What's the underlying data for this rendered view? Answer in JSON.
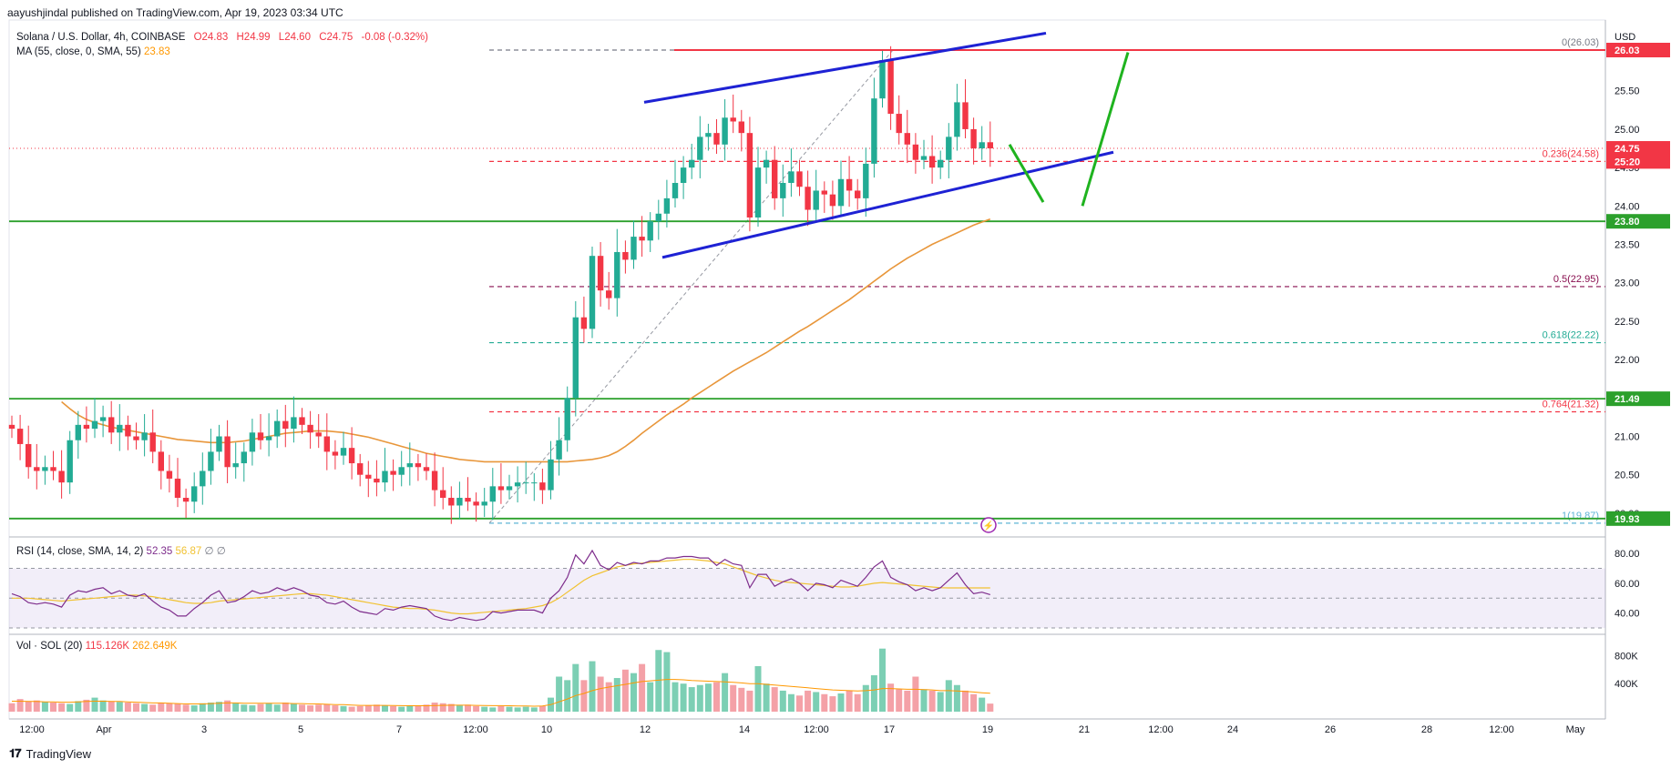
{
  "header": {
    "publisher": "aayushjindal published on TradingView.com, Apr 19, 2023 03:34 UTC",
    "symbol": "Solana / U.S. Dollar, 4h, COINBASE",
    "open": "O24.83",
    "high": "H24.99",
    "low": "L24.60",
    "close": "C24.75",
    "change": "-0.08 (-0.32%)",
    "ma_label": "MA (55, close, 0, SMA, 55)",
    "ma_value": "23.83",
    "rsi_label": "RSI (14, close, SMA, 14, 2)",
    "rsi_value": "52.35",
    "rsi_sma": "56.87",
    "rsi_extra": "∅ ∅",
    "vol_label": "Vol · SOL (20)",
    "vol_value": "115.126K",
    "vol_ma": "262.649K"
  },
  "footer": {
    "brand": "TradingView"
  },
  "colors": {
    "up": "#22ab94",
    "down": "#f23645",
    "ma": "#e8963a",
    "channel": "#1e22d4",
    "arrow": "#1fb31f",
    "support": "#2ca02c",
    "rsi": "#7e2d8c",
    "rsi_ma": "#f1c232"
  },
  "chart_data": [
    {
      "type": "candlestick",
      "title": "Solana / U.S. Dollar, 4h, COINBASE",
      "ylabel": "USD",
      "ylim": [
        19.75,
        26.35
      ],
      "y_ticks": [
        "26.00",
        "25.50",
        "25.00",
        "24.50",
        "24.00",
        "23.50",
        "23.00",
        "22.50",
        "22.00",
        "21.50",
        "21.00",
        "20.50",
        "20.00"
      ],
      "x_ticks": [
        "12:00",
        "Apr",
        "3",
        "5",
        "7",
        "12:00",
        "10",
        "12",
        "14",
        "12:00",
        "17",
        "19",
        "21",
        "12:00",
        "24",
        "26",
        "28",
        "12:00",
        "May"
      ],
      "price_labels": [
        {
          "value": 26.03,
          "text": "26.03",
          "color": "#f23645"
        },
        {
          "value": 24.75,
          "text": "24.75",
          "color": "#f23645"
        },
        {
          "value": 24.58,
          "text": "25:20",
          "color": "#f23645"
        },
        {
          "value": 23.8,
          "text": "23.80",
          "color": "#2ca02c"
        },
        {
          "value": 21.49,
          "text": "21.49",
          "color": "#2ca02c"
        },
        {
          "value": 19.93,
          "text": "19.93",
          "color": "#2ca02c"
        }
      ],
      "fib_levels": [
        {
          "ratio": "0",
          "value": 26.03,
          "text": "0(26.03)",
          "color": "#787b86"
        },
        {
          "ratio": "0.236",
          "value": 24.58,
          "text": "0.236(24.58)",
          "color": "#f23645"
        },
        {
          "ratio": "0.5",
          "value": 22.95,
          "text": "0.5(22.95)",
          "color": "#880e4f"
        },
        {
          "ratio": "0.618",
          "value": 22.22,
          "text": "0.618(22.22)",
          "color": "#22ab94"
        },
        {
          "ratio": "0.764",
          "value": 21.32,
          "text": "0.764(21.32)",
          "color": "#f23645"
        },
        {
          "ratio": "1",
          "value": 19.87,
          "text": "1(19.87)",
          "color": "#5fb4d6"
        }
      ],
      "horizontal_lines": [
        {
          "value": 26.03,
          "color": "#f23645",
          "style": "solid"
        },
        {
          "value": 23.8,
          "color": "#2ca02c",
          "style": "solid"
        },
        {
          "value": 21.49,
          "color": "#2ca02c",
          "style": "solid"
        },
        {
          "value": 19.93,
          "color": "#2ca02c",
          "style": "solid"
        },
        {
          "value": 24.75,
          "color": "#f23645",
          "style": "dotted"
        }
      ],
      "close": [
        21.1,
        20.9,
        20.6,
        20.55,
        20.6,
        20.55,
        20.4,
        20.95,
        21.15,
        21.1,
        21.2,
        21.25,
        21.05,
        21.15,
        21.0,
        20.95,
        21.05,
        20.8,
        20.55,
        20.45,
        20.2,
        20.15,
        20.35,
        20.55,
        20.8,
        21.0,
        20.6,
        20.65,
        20.8,
        21.05,
        20.95,
        21.0,
        21.2,
        21.1,
        21.25,
        21.15,
        21.05,
        21.0,
        20.8,
        20.75,
        20.85,
        20.65,
        20.5,
        20.45,
        20.4,
        20.55,
        20.5,
        20.6,
        20.65,
        20.6,
        20.55,
        20.3,
        20.2,
        20.1,
        20.2,
        20.15,
        20.1,
        20.15,
        20.35,
        20.3,
        20.35,
        20.4,
        20.4,
        20.4,
        20.3,
        20.7,
        20.95,
        21.5,
        22.55,
        22.4,
        23.35,
        22.9,
        22.8,
        23.4,
        23.3,
        23.6,
        23.55,
        23.8,
        23.9,
        24.1,
        24.3,
        24.5,
        24.6,
        24.9,
        24.95,
        24.8,
        25.15,
        25.1,
        24.95,
        23.85,
        24.5,
        24.6,
        24.1,
        24.3,
        24.45,
        24.25,
        23.95,
        24.2,
        24.15,
        24.0,
        24.35,
        24.2,
        24.1,
        24.55,
        25.4,
        25.9,
        25.2,
        24.95,
        24.8,
        24.6,
        24.65,
        24.5,
        24.6,
        24.9,
        25.35,
        25.0,
        24.75,
        24.83,
        24.75
      ],
      "ma55": [
        21.45,
        21.36,
        21.28,
        21.22,
        21.18,
        21.15,
        21.12,
        21.1,
        21.08,
        21.06,
        21.04,
        21.02,
        21.0,
        20.98,
        20.96,
        20.95,
        20.94,
        20.93,
        20.92,
        20.92,
        20.92,
        20.93,
        20.94,
        20.96,
        20.98,
        21.0,
        21.02,
        21.04,
        21.05,
        21.06,
        21.07,
        21.07,
        21.07,
        21.06,
        21.05,
        21.03,
        21.01,
        20.99,
        20.96,
        20.93,
        20.9,
        20.87,
        20.84,
        20.81,
        20.78,
        20.76,
        20.74,
        20.72,
        20.7,
        20.69,
        20.68,
        20.67,
        20.67,
        20.67,
        20.67,
        20.67,
        20.67,
        20.67,
        20.67,
        20.67,
        20.67,
        20.67,
        20.68,
        20.69,
        20.7,
        20.72,
        20.75,
        20.8,
        20.87,
        20.95,
        21.04,
        21.12,
        21.2,
        21.28,
        21.35,
        21.42,
        21.5,
        21.57,
        21.64,
        21.71,
        21.78,
        21.85,
        21.91,
        21.97,
        22.03,
        22.09,
        22.16,
        22.23,
        22.3,
        22.37,
        22.43,
        22.5,
        22.57,
        22.64,
        22.71,
        22.78,
        22.86,
        22.94,
        23.02,
        23.1,
        23.18,
        23.25,
        23.32,
        23.38,
        23.44,
        23.5,
        23.55,
        23.6,
        23.65,
        23.7,
        23.75,
        23.79,
        23.83
      ],
      "rsi": [
        53,
        51,
        47,
        46,
        47,
        46,
        44,
        52,
        55,
        54,
        56,
        57,
        53,
        55,
        52,
        51,
        53,
        48,
        44,
        42,
        38,
        38,
        43,
        47,
        52,
        55,
        47,
        48,
        51,
        55,
        53,
        54,
        57,
        55,
        57,
        55,
        52,
        51,
        47,
        46,
        48,
        44,
        41,
        40,
        39,
        43,
        42,
        44,
        45,
        44,
        43,
        38,
        36,
        35,
        37,
        36,
        35,
        36,
        41,
        40,
        41,
        42,
        42,
        42,
        40,
        50,
        55,
        64,
        79,
        73,
        82,
        72,
        69,
        74,
        72,
        74,
        73,
        75,
        75,
        77,
        77,
        78,
        78,
        77,
        77,
        72,
        76,
        73,
        72,
        57,
        66,
        66,
        58,
        61,
        63,
        60,
        55,
        60,
        59,
        57,
        62,
        60,
        58,
        64,
        71,
        75,
        64,
        61,
        59,
        55,
        57,
        55,
        57,
        62,
        67,
        59,
        53,
        54,
        52.35
      ],
      "rsi_ma": [
        50,
        50,
        50,
        49.5,
        49,
        48.5,
        48,
        48.5,
        49,
        49.5,
        50,
        50.5,
        51,
        51.5,
        52,
        52,
        51.5,
        51,
        50,
        49,
        48,
        47,
        46.5,
        46.5,
        47,
        48,
        48.5,
        49,
        49.5,
        50,
        50.5,
        51,
        51.5,
        52,
        52.5,
        53,
        53,
        52.5,
        52,
        51,
        50,
        49,
        48,
        47,
        46,
        45,
        44,
        43.5,
        43,
        43,
        42.5,
        42,
        41,
        40,
        39.5,
        39.5,
        40,
        40.5,
        41,
        41.5,
        42,
        42.5,
        43,
        44,
        45,
        47,
        50,
        54,
        58,
        62,
        65,
        67,
        69,
        71,
        72,
        73,
        73.5,
        74,
        74.5,
        75,
        75.5,
        76,
        76,
        75.5,
        75,
        74,
        73,
        71,
        69,
        67,
        65,
        63.5,
        62,
        61,
        60.5,
        60,
        59.5,
        59,
        58.5,
        58,
        57.5,
        57.5,
        58,
        59,
        60,
        60.5,
        60,
        59.5,
        59,
        58.5,
        58,
        57.5,
        57,
        56.9,
        56.9,
        56.87,
        56.87,
        56.87,
        56.87
      ],
      "rsi_ylim": [
        30,
        85
      ],
      "rsi_ticks": [
        "80.00",
        "60.00",
        "40.00"
      ],
      "volume": [
        120,
        180,
        150,
        160,
        140,
        130,
        120,
        110,
        150,
        170,
        200,
        160,
        150,
        140,
        130,
        120,
        110,
        100,
        130,
        120,
        110,
        100,
        90,
        120,
        130,
        140,
        160,
        120,
        100,
        90,
        110,
        120,
        100,
        130,
        110,
        100,
        90,
        100,
        110,
        90,
        80,
        70,
        80,
        90,
        100,
        90,
        80,
        70,
        80,
        90,
        100,
        130,
        120,
        110,
        90,
        100,
        80,
        70,
        60,
        80,
        70,
        60,
        70,
        60,
        80,
        200,
        500,
        450,
        680,
        450,
        720,
        500,
        420,
        480,
        600,
        550,
        680,
        420,
        880,
        850,
        420,
        400,
        350,
        380,
        400,
        420,
        550,
        380,
        340,
        300,
        650,
        400,
        350,
        300,
        250,
        230,
        300,
        280,
        250,
        220,
        260,
        300,
        250,
        380,
        520,
        900,
        400,
        320,
        300,
        500,
        320,
        300,
        280,
        450,
        380,
        300,
        250,
        200,
        115
      ],
      "vol_ma": [
        150,
        150,
        145,
        145,
        140,
        140,
        135,
        135,
        140,
        145,
        150,
        150,
        145,
        145,
        140,
        135,
        130,
        125,
        125,
        120,
        115,
        110,
        110,
        110,
        115,
        120,
        125,
        125,
        120,
        120,
        120,
        120,
        120,
        120,
        115,
        115,
        110,
        110,
        105,
        100,
        100,
        95,
        90,
        90,
        90,
        90,
        88,
        86,
        85,
        85,
        85,
        88,
        90,
        92,
        92,
        92,
        90,
        88,
        86,
        86,
        84,
        82,
        80,
        78,
        80,
        100,
        140,
        180,
        230,
        260,
        300,
        330,
        350,
        370,
        390,
        410,
        430,
        440,
        450,
        460,
        460,
        455,
        445,
        440,
        435,
        430,
        425,
        420,
        410,
        400,
        400,
        390,
        380,
        370,
        360,
        350,
        340,
        330,
        320,
        310,
        305,
        300,
        295,
        300,
        310,
        330,
        330,
        325,
        320,
        320,
        315,
        310,
        300,
        300,
        295,
        290,
        280,
        270,
        262
      ],
      "vol_ylim": [
        0,
        1000
      ],
      "vol_ticks": [
        "800K",
        "400K"
      ]
    }
  ]
}
